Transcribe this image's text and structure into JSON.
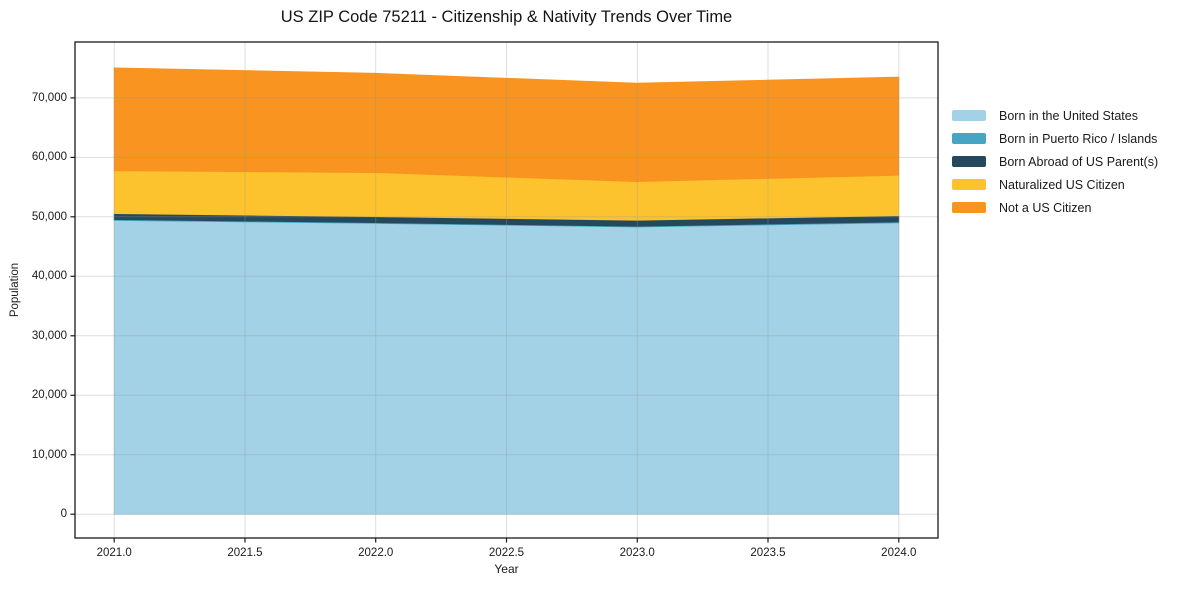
{
  "chart_data": {
    "type": "area",
    "stacked": true,
    "title": "US ZIP Code 75211 - Citizenship & Nativity Trends Over Time",
    "xlabel": "Year",
    "ylabel": "Population",
    "x": [
      2021,
      2022,
      2023,
      2024
    ],
    "series": [
      {
        "name": "Born in the United States",
        "color": "#a3d2e7",
        "values": [
          49400,
          48900,
          48300,
          49000
        ]
      },
      {
        "name": "Born in Puerto Rico / Islands",
        "color": "#46a5c4",
        "values": [
          150,
          140,
          130,
          150
        ]
      },
      {
        "name": "Born Abroad of US Parent(s)",
        "color": "#25495c",
        "values": [
          1000,
          1000,
          1000,
          1050
        ]
      },
      {
        "name": "Naturalized US Citizen",
        "color": "#fdc32e",
        "values": [
          7200,
          7400,
          6500,
          6800
        ]
      },
      {
        "name": "Not a US Citizen",
        "color": "#f8941f",
        "values": [
          17300,
          16700,
          16550,
          16500
        ]
      }
    ],
    "xlim": [
      2020.85,
      2024.15
    ],
    "ylim": [
      -4000,
      79400
    ],
    "xticks": {
      "values": [
        2021.0,
        2021.5,
        2022.0,
        2022.5,
        2023.0,
        2023.5,
        2024.0
      ],
      "labels": [
        "2021.0",
        "2021.5",
        "2022.0",
        "2022.5",
        "2023.0",
        "2023.5",
        "2024.0"
      ]
    },
    "yticks": {
      "values": [
        0,
        10000,
        20000,
        30000,
        40000,
        50000,
        60000,
        70000
      ],
      "labels": [
        "0",
        "10,000",
        "20,000",
        "30,000",
        "40,000",
        "50,000",
        "60,000",
        "70,000"
      ]
    },
    "grid": true,
    "grid_color": "rgba(150,150,150,0.32)",
    "spine_color": "#1a1a1a",
    "legend_position": "right of plot, no frame"
  }
}
